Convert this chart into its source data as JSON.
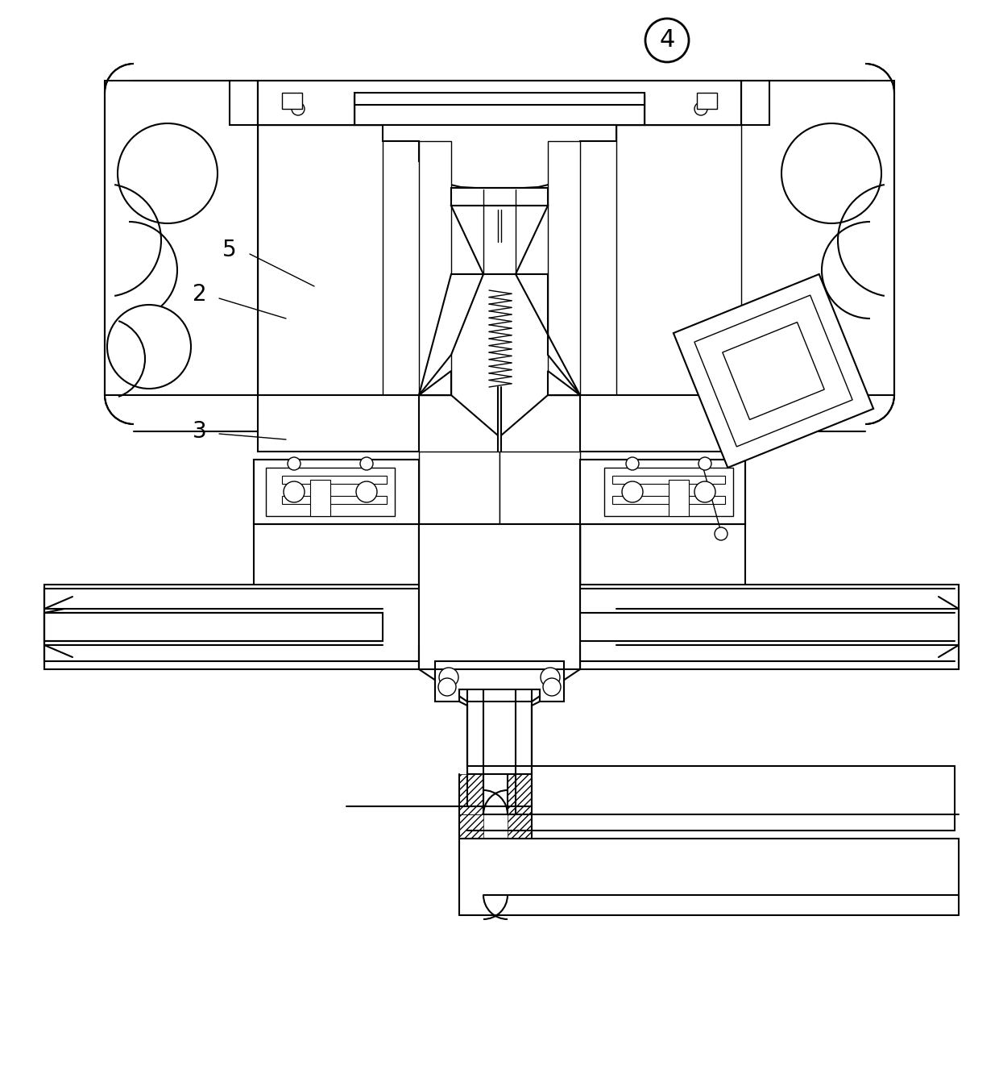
{
  "background_color": "#ffffff",
  "line_color": "#000000",
  "label_4": "4",
  "label_2": "2",
  "label_3": "3",
  "label_5": "5",
  "figure_width": 12.4,
  "figure_height": 13.27,
  "dpi": 100
}
